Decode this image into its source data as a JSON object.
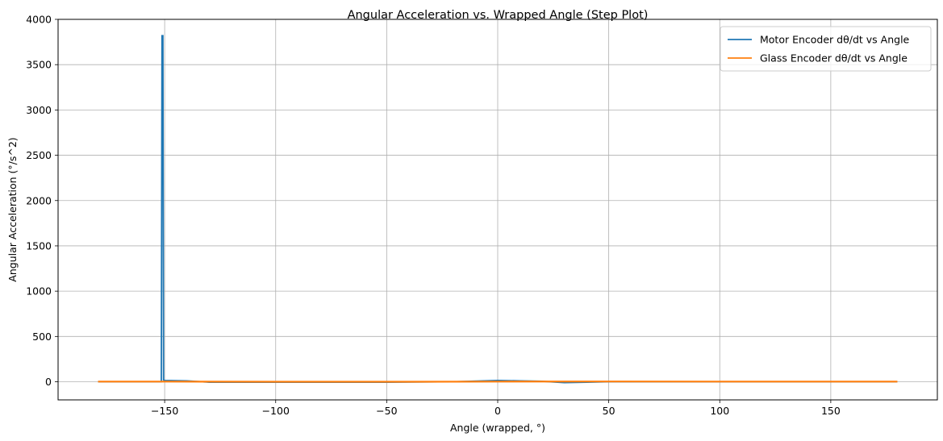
{
  "chart_data": {
    "type": "line",
    "title": "Angular Acceleration vs. Wrapped Angle (Step Plot)",
    "xlabel": "Angle (wrapped, °)",
    "ylabel": "Angular Acceleration (°/s^2)",
    "xlim": [
      -198,
      198
    ],
    "ylim": [
      -200,
      4000
    ],
    "xticks": [
      -150,
      -100,
      -50,
      0,
      50,
      100,
      150
    ],
    "xtick_labels": [
      "−150",
      "−100",
      "−50",
      "0",
      "50",
      "100",
      "150"
    ],
    "yticks": [
      0,
      500,
      1000,
      1500,
      2000,
      2500,
      3000,
      3500,
      4000
    ],
    "ytick_labels": [
      "0",
      "500",
      "1000",
      "1500",
      "2000",
      "2500",
      "3000",
      "3500",
      "4000"
    ],
    "grid": true,
    "legend_position": "top-right",
    "series": [
      {
        "name": "Motor Encoder dθ/dt vs Angle",
        "color": "#1f77b4",
        "x": [
          -180,
          -151.5,
          -151.2,
          -150.8,
          -150.5,
          -150,
          -140,
          -130,
          -100,
          -50,
          -20,
          0,
          10,
          20,
          30,
          40,
          50,
          100,
          150,
          180
        ],
        "y": [
          0,
          0,
          3820,
          3820,
          20,
          15,
          10,
          -5,
          -5,
          -5,
          0,
          15,
          10,
          5,
          -10,
          -5,
          0,
          0,
          0,
          0
        ]
      },
      {
        "name": "Glass Encoder dθ/dt vs Angle",
        "color": "#ff7f0e",
        "x": [
          -180,
          -150,
          -100,
          -50,
          0,
          50,
          100,
          150,
          180
        ],
        "y": [
          2,
          2,
          0,
          0,
          2,
          3,
          2,
          2,
          2
        ]
      }
    ]
  }
}
